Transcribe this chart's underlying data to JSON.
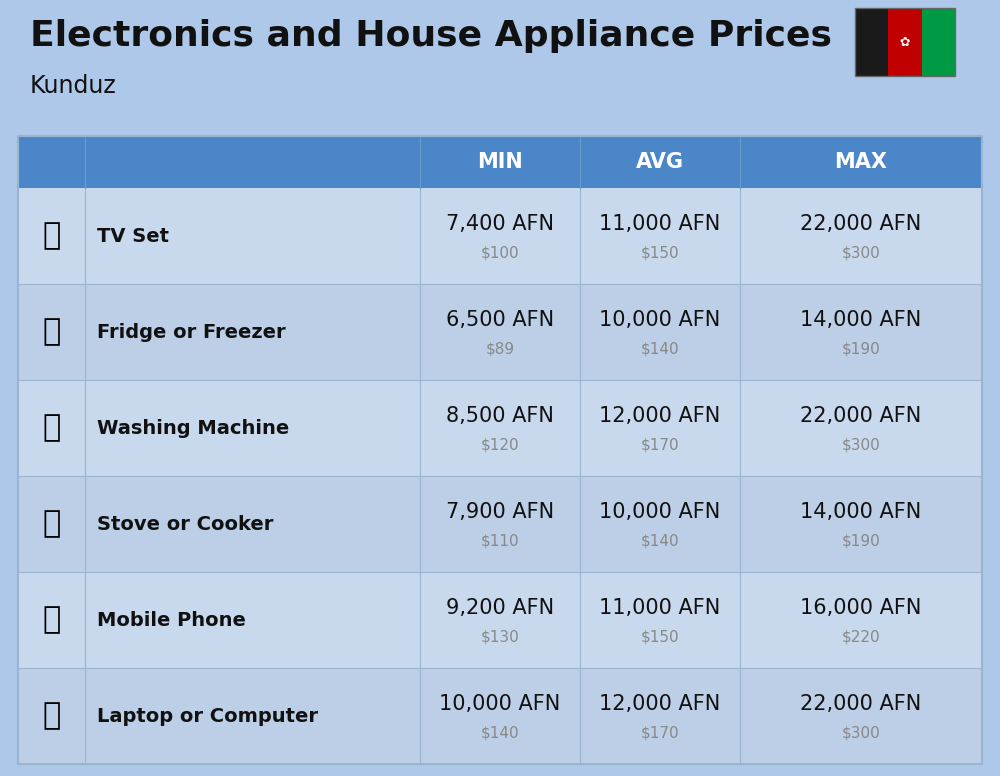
{
  "title": "Electronics and House Appliance Prices",
  "subtitle": "Kunduz",
  "bg_color": "#adc8e8",
  "header_color": "#4a86c8",
  "header_text_color": "#ffffff",
  "row_bg_light": "#c8d9ee",
  "row_bg_dark": "#bccfe6",
  "divider_color": "#9ab5d0",
  "item_name_color": "#111111",
  "afn_color": "#111111",
  "usd_color": "#888888",
  "columns": [
    "MIN",
    "AVG",
    "MAX"
  ],
  "rows": [
    {
      "name": "TV Set",
      "min_afn": "7,400 AFN",
      "min_usd": "$100",
      "avg_afn": "11,000 AFN",
      "avg_usd": "$150",
      "max_afn": "22,000 AFN",
      "max_usd": "$300"
    },
    {
      "name": "Fridge or Freezer",
      "min_afn": "6,500 AFN",
      "min_usd": "$89",
      "avg_afn": "10,000 AFN",
      "avg_usd": "$140",
      "max_afn": "14,000 AFN",
      "max_usd": "$190"
    },
    {
      "name": "Washing Machine",
      "min_afn": "8,500 AFN",
      "min_usd": "$120",
      "avg_afn": "12,000 AFN",
      "avg_usd": "$170",
      "max_afn": "22,000 AFN",
      "max_usd": "$300"
    },
    {
      "name": "Stove or Cooker",
      "min_afn": "7,900 AFN",
      "min_usd": "$110",
      "avg_afn": "10,000 AFN",
      "avg_usd": "$140",
      "max_afn": "14,000 AFN",
      "max_usd": "$190"
    },
    {
      "name": "Mobile Phone",
      "min_afn": "9,200 AFN",
      "min_usd": "$130",
      "avg_afn": "11,000 AFN",
      "avg_usd": "$150",
      "max_afn": "16,000 AFN",
      "max_usd": "$220"
    },
    {
      "name": "Laptop or Computer",
      "min_afn": "10,000 AFN",
      "min_usd": "$140",
      "avg_afn": "12,000 AFN",
      "avg_usd": "$170",
      "max_afn": "22,000 AFN",
      "max_usd": "$300"
    }
  ],
  "title_fontsize": 26,
  "subtitle_fontsize": 17,
  "header_fontsize": 15,
  "item_name_fontsize": 14,
  "afn_fontsize": 15,
  "usd_fontsize": 11,
  "icon_fontsize": 22
}
